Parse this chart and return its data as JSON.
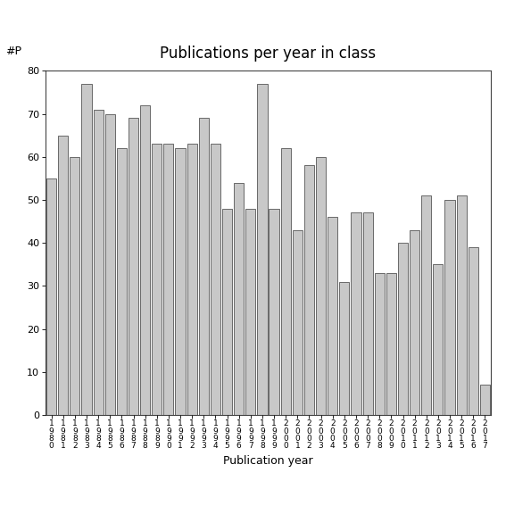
{
  "title": "Publications per year in class",
  "xlabel": "Publication year",
  "ylabel_annotation": "#P",
  "years": [
    "1980",
    "1981",
    "1982",
    "1983",
    "1984",
    "1985",
    "1986",
    "1987",
    "1988",
    "1989",
    "1990",
    "1991",
    "1992",
    "1993",
    "1994",
    "1995",
    "1996",
    "1997",
    "1998",
    "1999",
    "2000",
    "2001",
    "2002",
    "2003",
    "2004",
    "2005",
    "2006",
    "2007",
    "2008",
    "2009",
    "2010",
    "2011",
    "2012",
    "2013",
    "2014",
    "2015",
    "2016",
    "2017"
  ],
  "values": [
    55,
    65,
    60,
    77,
    71,
    70,
    62,
    69,
    72,
    63,
    63,
    62,
    63,
    69,
    63,
    48,
    54,
    48,
    77,
    48,
    62,
    43,
    58,
    60,
    46,
    31,
    47,
    47,
    33,
    33,
    40,
    43,
    51,
    35,
    50,
    51,
    39,
    7
  ],
  "bar_color": "#c8c8c8",
  "bar_edgecolor": "#555555",
  "ylim": [
    0,
    80
  ],
  "yticks": [
    0,
    10,
    20,
    30,
    40,
    50,
    60,
    70,
    80
  ],
  "background_color": "#ffffff",
  "title_fontsize": 12,
  "label_fontsize": 9,
  "tick_fontsize": 8
}
